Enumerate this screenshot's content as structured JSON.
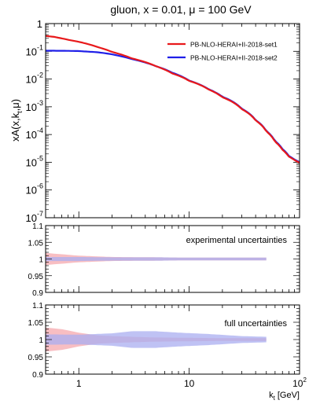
{
  "chart_data": {
    "title": "gluon, x = 0.01, μ = 100 GeV",
    "xlabel_main": "k",
    "xlabel_sub": "t",
    "xlabel_unit": " [GeV]",
    "ylabel": {
      "prefix": "xA(x,k",
      "sub": "t",
      "suffix": ",μ)"
    },
    "xscale": "log",
    "xlim": [
      0.5,
      100
    ],
    "x_tick_labels": [
      {
        "value": 1,
        "label": "1"
      },
      {
        "value": 10,
        "label": "10"
      },
      {
        "value": 100,
        "label": "10",
        "exp": "2"
      }
    ],
    "panels": [
      {
        "id": "main",
        "type": "line",
        "yscale": "log",
        "ylim": [
          1e-07,
          1
        ],
        "y_tick_labels": [
          {
            "value": 1,
            "label": "1",
            "exp": ""
          },
          {
            "value": 0.1,
            "label": "10",
            "exp": "-1"
          },
          {
            "value": 0.01,
            "label": "10",
            "exp": "-2"
          },
          {
            "value": 0.001,
            "label": "10",
            "exp": "-3"
          },
          {
            "value": 0.0001,
            "label": "10",
            "exp": "-4"
          },
          {
            "value": 1e-05,
            "label": "10",
            "exp": "-5"
          },
          {
            "value": 1e-06,
            "label": "10",
            "exp": "-6"
          },
          {
            "value": 1e-07,
            "label": "10",
            "exp": "-7"
          }
        ],
        "legend_position": "top-right",
        "series": [
          {
            "name": "PB-NLO-HERAI+II-2018-set1",
            "color": "#e8191b",
            "points": [
              [
                0.5,
                0.36
              ],
              [
                0.6,
                0.33
              ],
              [
                0.8,
                0.26
              ],
              [
                1.0,
                0.22
              ],
              [
                1.5,
                0.14
              ],
              [
                2,
                0.095
              ],
              [
                3,
                0.056
              ],
              [
                5,
                0.029
              ],
              [
                7,
                0.016
              ],
              [
                10,
                0.0086
              ],
              [
                15,
                0.0042
              ],
              [
                20,
                0.0022
              ],
              [
                30,
                0.00082
              ],
              [
                40,
                0.00032
              ],
              [
                50,
                0.00013
              ],
              [
                60,
                5.5e-05
              ],
              [
                70,
                2.8e-05
              ],
              [
                80,
                1.6e-05
              ],
              [
                90,
                1.2e-05
              ],
              [
                100,
                9.5e-06
              ]
            ]
          },
          {
            "name": "PB-NLO-HERAI+II-2018-set2",
            "color": "#1f1fe8",
            "points": [
              [
                0.5,
                0.105
              ],
              [
                0.6,
                0.105
              ],
              [
                0.8,
                0.104
              ],
              [
                1.0,
                0.102
              ],
              [
                1.5,
                0.092
              ],
              [
                2,
                0.078
              ],
              [
                3,
                0.053
              ],
              [
                5,
                0.029
              ],
              [
                7,
                0.017
              ],
              [
                10,
                0.0088
              ],
              [
                15,
                0.0043
              ],
              [
                20,
                0.0023
              ],
              [
                30,
                0.00085
              ],
              [
                40,
                0.00033
              ],
              [
                50,
                0.000135
              ],
              [
                60,
                5.8e-05
              ],
              [
                70,
                3e-05
              ],
              [
                80,
                1.7e-05
              ],
              [
                90,
                1.25e-05
              ],
              [
                100,
                1e-05
              ]
            ]
          }
        ]
      },
      {
        "id": "ratio-experimental",
        "type": "area",
        "label": "experimental uncertainties",
        "ylim": [
          0.9,
          1.1
        ],
        "y_tick_labels": [
          {
            "value": 0.9,
            "label": "0.9"
          },
          {
            "value": 0.95,
            "label": "0.95"
          },
          {
            "value": 1.0,
            "label": "1"
          },
          {
            "value": 1.05,
            "label": "1.05"
          },
          {
            "value": 1.1,
            "label": "1.1"
          }
        ],
        "x_end": 50,
        "bands": [
          {
            "name": "set1",
            "color": "#f5a3a8",
            "opacity": 0.7,
            "halfwidth": [
              [
                0.5,
                0.018
              ],
              [
                1,
                0.01
              ],
              [
                2,
                0.006
              ],
              [
                5,
                0.005
              ],
              [
                10,
                0.004
              ],
              [
                20,
                0.004
              ],
              [
                50,
                0.004
              ]
            ]
          },
          {
            "name": "set2",
            "color": "#a9aef0",
            "opacity": 0.75,
            "halfwidth": [
              [
                0.5,
                0.006
              ],
              [
                1,
                0.006
              ],
              [
                2,
                0.005
              ],
              [
                5,
                0.005
              ],
              [
                10,
                0.004
              ],
              [
                20,
                0.004
              ],
              [
                50,
                0.004
              ]
            ]
          }
        ]
      },
      {
        "id": "ratio-full",
        "type": "area",
        "label": "full uncertainties",
        "ylim": [
          0.9,
          1.1
        ],
        "y_tick_labels": [
          {
            "value": 0.9,
            "label": "0.9"
          },
          {
            "value": 0.95,
            "label": "0.95"
          },
          {
            "value": 1.0,
            "label": "1"
          },
          {
            "value": 1.05,
            "label": "1.05"
          },
          {
            "value": 1.1,
            "label": "1.1"
          }
        ],
        "x_end": 50,
        "bands": [
          {
            "name": "set1",
            "color": "#f5a3a8",
            "opacity": 0.7,
            "halfwidth": [
              [
                0.5,
                0.035
              ],
              [
                0.7,
                0.03
              ],
              [
                1,
                0.02
              ],
              [
                1.5,
                0.012
              ],
              [
                2,
                0.01
              ],
              [
                3,
                0.008
              ],
              [
                5,
                0.006
              ],
              [
                10,
                0.005
              ],
              [
                20,
                0.004
              ],
              [
                50,
                0.004
              ]
            ]
          },
          {
            "name": "set2",
            "color": "#a9aef0",
            "opacity": 0.75,
            "halfwidth": [
              [
                0.5,
                0.015
              ],
              [
                1,
                0.014
              ],
              [
                2,
                0.018
              ],
              [
                3,
                0.024
              ],
              [
                5,
                0.024
              ],
              [
                8,
                0.02
              ],
              [
                15,
                0.016
              ],
              [
                30,
                0.01
              ],
              [
                50,
                0.008
              ]
            ]
          }
        ]
      }
    ]
  }
}
